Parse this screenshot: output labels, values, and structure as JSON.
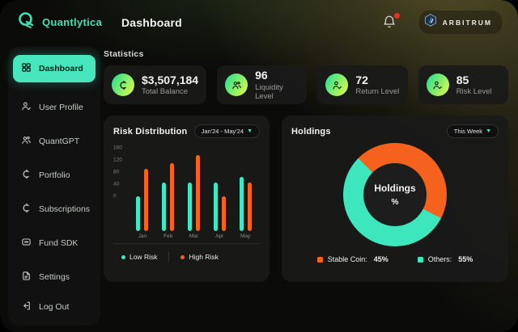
{
  "header": {
    "brand": "Quantlytica",
    "page_title": "Dashboard",
    "network_label": "ARBITRUM"
  },
  "sidebar": {
    "items": [
      {
        "label": "Dashboard",
        "icon": "dashboard-grid-icon",
        "active": true
      },
      {
        "label": "User Profile",
        "icon": "user-profile-icon",
        "active": false
      },
      {
        "label": "QuantGPT",
        "icon": "quantgpt-people-icon",
        "active": false
      },
      {
        "label": "Portfolio",
        "icon": "portfolio-coin-icon",
        "active": false
      },
      {
        "label": "Subscriptions",
        "icon": "subscriptions-coin-icon",
        "active": false
      },
      {
        "label": "Fund SDK",
        "icon": "fund-sdk-icon",
        "active": false
      },
      {
        "label": "Settings",
        "icon": "settings-file-icon",
        "active": false
      }
    ],
    "logout_label": "Log Out"
  },
  "statistics": {
    "section_label": "Statistics",
    "cards": [
      {
        "value": "$3,507,184",
        "label": "Total Balance",
        "icon": "coin-icon"
      },
      {
        "value": "96",
        "label": "Liquidity Level",
        "icon": "people-icon"
      },
      {
        "value": "72",
        "label": "Return Level",
        "icon": "person-check-icon"
      },
      {
        "value": "85",
        "label": "Risk Level",
        "icon": "person-check-icon"
      }
    ]
  },
  "chart_data": [
    {
      "type": "bar",
      "title": "Risk Distribution",
      "range_label": "Jan'24 - May'24",
      "categories": [
        "Jan",
        "Feb",
        "Mar",
        "Apr",
        "May"
      ],
      "series": [
        {
          "name": "Low Risk",
          "color": "#3fe8c2",
          "values": [
            65,
            90,
            90,
            90,
            100
          ]
        },
        {
          "name": "High Risk",
          "color": "#f5621d",
          "values": [
            115,
            125,
            140,
            65,
            90
          ]
        }
      ],
      "ylim": [
        0,
        160
      ],
      "yticks_display": [
        "160",
        "120",
        "80",
        "40",
        "0"
      ],
      "grid": false,
      "legend_position": "bottom"
    },
    {
      "type": "pie",
      "title": "Holdings",
      "period_label": "This Week",
      "center_label": "Holdings",
      "center_unit": "%",
      "slices": [
        {
          "label": "Stable Coin",
          "label_display": "Stable Coin:",
          "value": 45,
          "value_label": "45%",
          "color": "#f5621d"
        },
        {
          "label": "Others",
          "label_display": "Others:",
          "value": 55,
          "value_label": "55%",
          "color": "#3ee6bd"
        }
      ],
      "legend_position": "bottom"
    }
  ],
  "colors": {
    "accent_teal": "#47e6bd",
    "accent_orange": "#f5621d",
    "brand_teal": "#3fe0b4",
    "icon_gradient_start": "#2ee08f",
    "icon_gradient_end": "#d6f94b",
    "notification_red": "#e8312a",
    "arbitrum_blue": "#12aaff",
    "card_bg": "#191a19",
    "window_bg": "#0b0b09"
  }
}
